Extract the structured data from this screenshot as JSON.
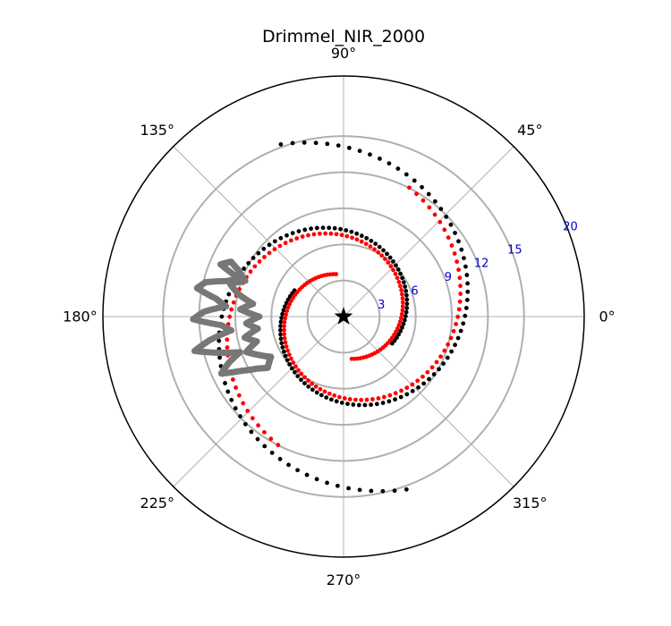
{
  "chart_data": {
    "type": "scatter",
    "projection": "polar",
    "title": "Drimmel_NIR_2000",
    "theta_ticks": [
      {
        "deg": 0,
        "label": "0°"
      },
      {
        "deg": 45,
        "label": "45°"
      },
      {
        "deg": 90,
        "label": "90°"
      },
      {
        "deg": 135,
        "label": "135°"
      },
      {
        "deg": 180,
        "label": "180°"
      },
      {
        "deg": 225,
        "label": "225°"
      },
      {
        "deg": 270,
        "label": "270°"
      },
      {
        "deg": 315,
        "label": "315°"
      }
    ],
    "r_ticks": [
      {
        "value": 3,
        "label": "3"
      },
      {
        "value": 6,
        "label": "6"
      },
      {
        "value": 9,
        "label": "9"
      },
      {
        "value": 12,
        "label": "12"
      },
      {
        "value": 15,
        "label": "15"
      },
      {
        "value": 20,
        "label": "20"
      }
    ],
    "r_tick_angle_deg": 22.5,
    "rlim": [
      0,
      20
    ],
    "grid": true,
    "center_marker": {
      "r": 0,
      "theta_deg": 0,
      "marker": "star",
      "color": "#000000"
    },
    "series": [
      {
        "color": "#000000",
        "marker": "dot",
        "spirals": [
          {
            "a": 4.62,
            "b": 0.215,
            "theta_start_deg": 152,
            "theta_end_deg": 470,
            "points": 88
          },
          {
            "a": 4.62,
            "b": 0.215,
            "theta_start_deg": -29,
            "theta_end_deg": 290,
            "points": 88
          }
        ]
      },
      {
        "color": "#ff0000",
        "marker": "dot",
        "spirals": [
          {
            "a": 3.58,
            "b": 0.215,
            "theta_start_deg": 100,
            "theta_end_deg": 423,
            "points": 88
          },
          {
            "a": 3.58,
            "b": 0.215,
            "theta_start_deg": -79,
            "theta_end_deg": 243,
            "points": 88
          }
        ]
      },
      {
        "color": "#777777",
        "marker": "dot",
        "outline": [
          [
            10.4,
            154
          ],
          [
            11.1,
            157
          ],
          [
            9.2,
            160
          ],
          [
            10.1,
            163
          ],
          [
            11.8,
            166
          ],
          [
            12.4,
            169
          ],
          [
            10.7,
            172
          ],
          [
            9.8,
            175
          ],
          [
            11.6,
            178
          ],
          [
            12.5,
            181
          ],
          [
            10.2,
            184
          ],
          [
            9.4,
            187
          ],
          [
            11.3,
            190
          ],
          [
            12.7,
            193
          ],
          [
            10.9,
            196
          ],
          [
            9.1,
            199
          ],
          [
            10.3,
            202
          ],
          [
            11.2,
            205
          ],
          [
            9.6,
            208
          ],
          [
            8.4,
            211
          ],
          [
            7.6,
            214
          ],
          [
            6.9,
            209
          ],
          [
            7.8,
            204
          ],
          [
            8.6,
            200
          ],
          [
            7.5,
            196
          ],
          [
            8.4,
            192
          ],
          [
            7.2,
            188
          ],
          [
            8.1,
            184
          ],
          [
            7.0,
            180
          ],
          [
            8.6,
            176
          ],
          [
            7.6,
            172
          ],
          [
            8.9,
            168
          ],
          [
            9.8,
            164
          ],
          [
            8.7,
            160
          ],
          [
            9.6,
            156
          ]
        ]
      }
    ]
  }
}
